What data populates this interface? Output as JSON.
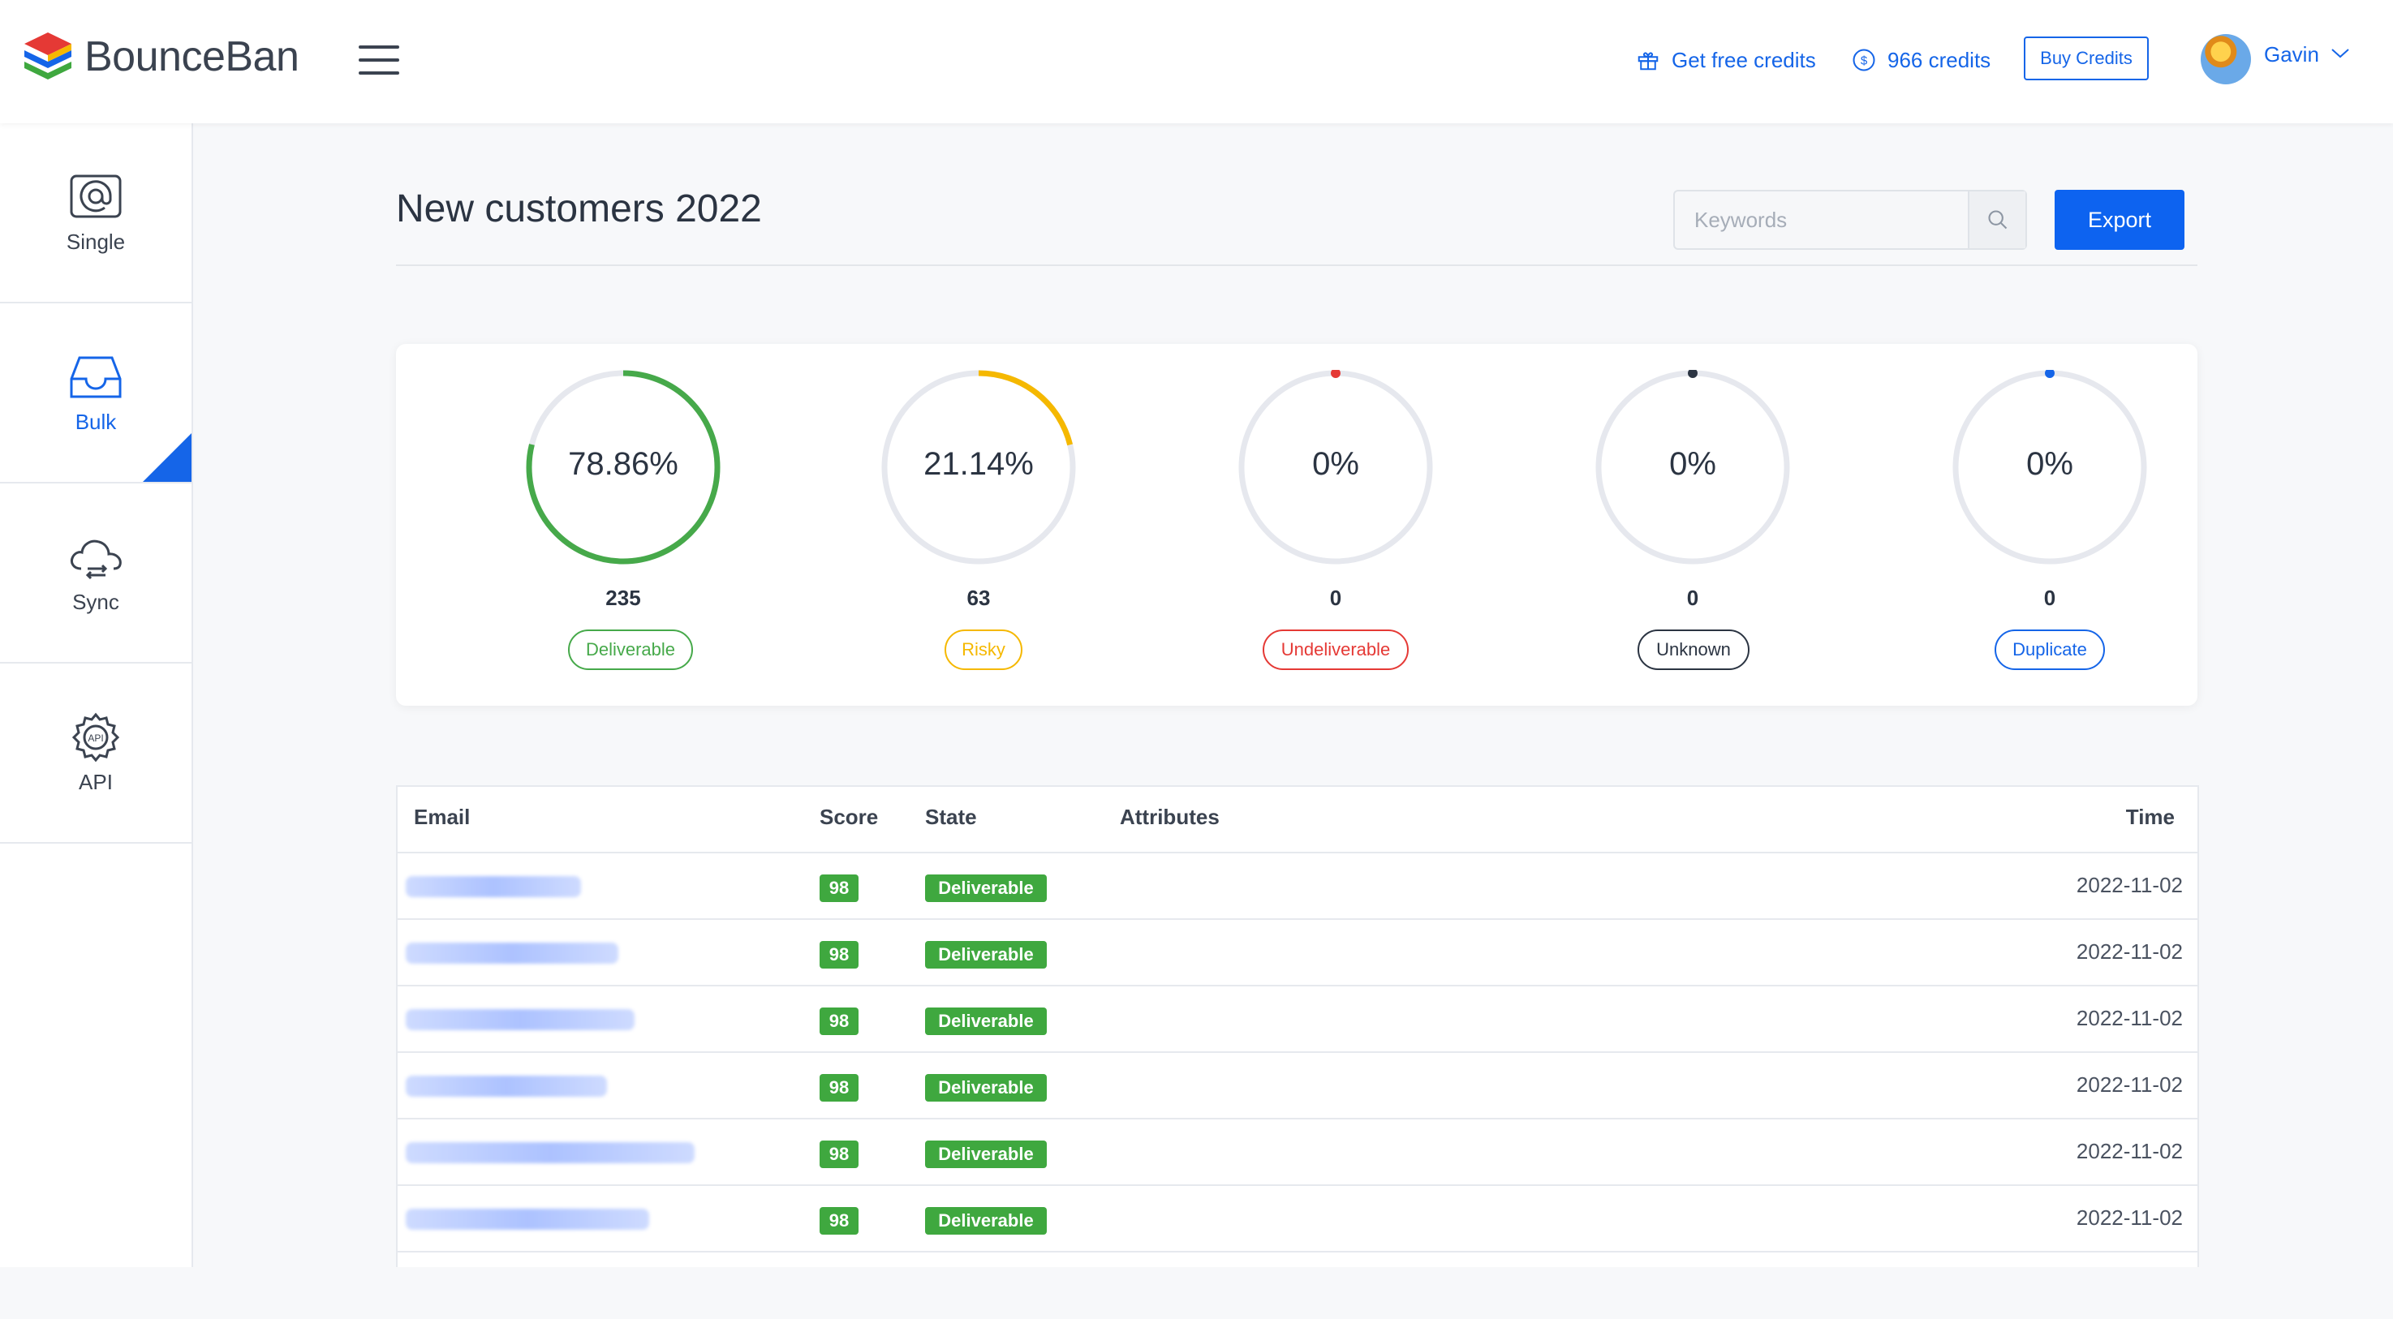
{
  "app": {
    "brand": "BounceBan"
  },
  "topbar": {
    "free_credits": "Get free credits",
    "credits": "966 credits",
    "buy_credits": "Buy Credits",
    "user": "Gavin"
  },
  "sidebar": {
    "items": [
      {
        "label": "Single",
        "icon": "at-sign-icon"
      },
      {
        "label": "Bulk",
        "icon": "inbox-icon",
        "active": true
      },
      {
        "label": "Sync",
        "icon": "cloud-sync-icon"
      },
      {
        "label": "API",
        "icon": "api-gear-icon"
      }
    ]
  },
  "page": {
    "title": "New customers 2022",
    "search_placeholder": "Keywords",
    "export_label": "Export"
  },
  "stats": [
    {
      "percent": "78.86%",
      "fraction": 0.7886,
      "count": "235",
      "label": "Deliverable",
      "color": "#46a94a"
    },
    {
      "percent": "21.14%",
      "fraction": 0.2114,
      "count": "63",
      "label": "Risky",
      "color": "#f5b800"
    },
    {
      "percent": "0%",
      "fraction": 0,
      "count": "0",
      "label": "Undeliverable",
      "color": "#e53935"
    },
    {
      "percent": "0%",
      "fraction": 0,
      "count": "0",
      "label": "Unknown",
      "color": "#2b3442"
    },
    {
      "percent": "0%",
      "fraction": 0,
      "count": "0",
      "label": "Duplicate",
      "color": "#1565e8"
    }
  ],
  "table": {
    "headers": {
      "email": "Email",
      "score": "Score",
      "state": "State",
      "attributes": "Attributes",
      "time": "Time"
    },
    "rows": [
      {
        "score": "98",
        "state": "Deliverable",
        "time": "2022-11-02"
      },
      {
        "score": "98",
        "state": "Deliverable",
        "time": "2022-11-02"
      },
      {
        "score": "98",
        "state": "Deliverable",
        "time": "2022-11-02"
      },
      {
        "score": "98",
        "state": "Deliverable",
        "time": "2022-11-02"
      },
      {
        "score": "98",
        "state": "Deliverable",
        "time": "2022-11-02"
      },
      {
        "score": "98",
        "state": "Deliverable",
        "time": "2022-11-02"
      }
    ]
  },
  "colors": {
    "accent": "#1565e8",
    "success": "#3fa83f",
    "warning": "#f5b800",
    "danger": "#e53935"
  }
}
